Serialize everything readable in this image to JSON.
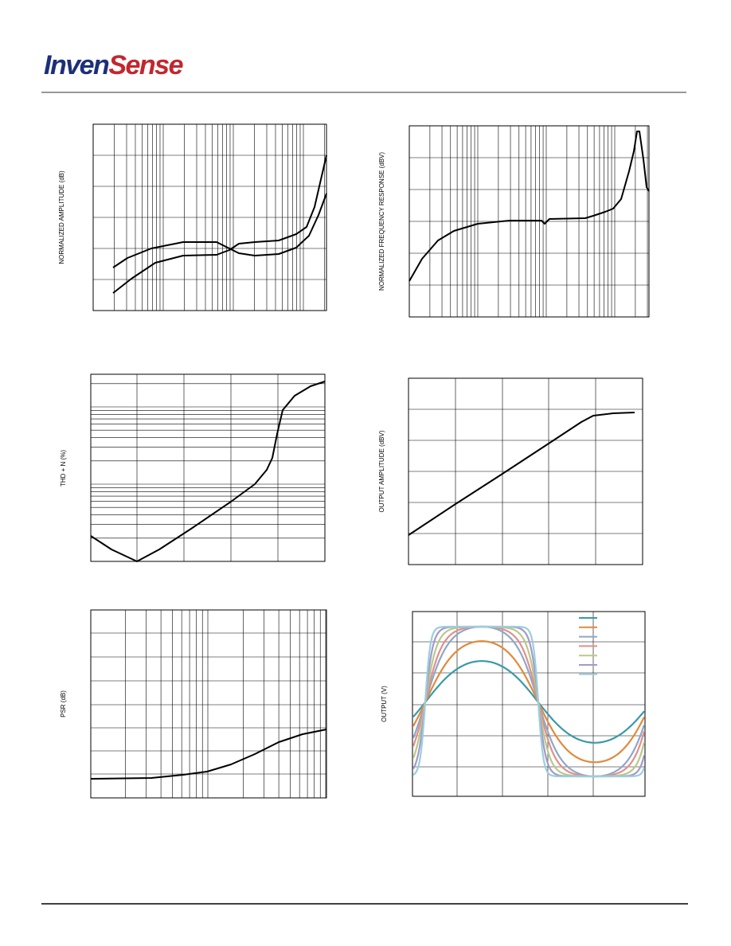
{
  "header": {
    "logo": [
      "Inven",
      "Sense"
    ]
  },
  "plots": [
    {
      "ylabel": "NORMALIZED AMPLITUDE (dB)"
    },
    {
      "ylabel": "NORMALIZED FREQUENCY RESPONSE (dBV)"
    },
    {
      "ylabel": "THD + N (%)"
    },
    {
      "ylabel": "OUTPUT AMPLITUDE (dBV)"
    },
    {
      "ylabel": "PSR (dB)"
    },
    {
      "ylabel": "OUTPUT (V)"
    }
  ]
}
